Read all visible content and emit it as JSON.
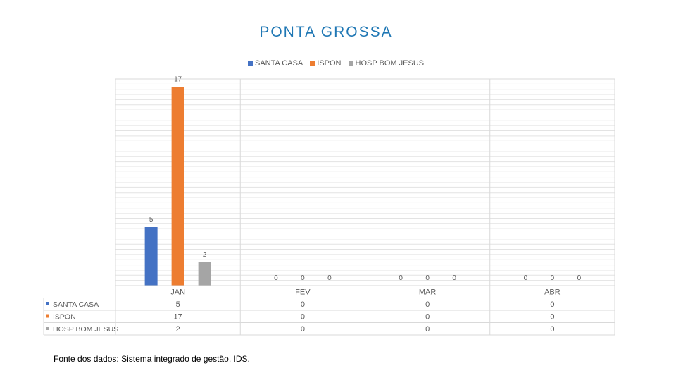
{
  "chart_data": {
    "type": "bar",
    "title": "PONTA GROSSA",
    "categories": [
      "JAN",
      "FEV",
      "MAR",
      "ABR"
    ],
    "series": [
      {
        "name": "SANTA CASA",
        "values": [
          5,
          0,
          0,
          0
        ],
        "color": "#4472c4"
      },
      {
        "name": "ISPON",
        "values": [
          17,
          0,
          0,
          0
        ],
        "color": "#ed7d31"
      },
      {
        "name": "HOSP BOM JESUS",
        "values": [
          2,
          0,
          0,
          0
        ],
        "color": "#a5a5a5"
      }
    ],
    "ylim": [
      0,
      17.7
    ],
    "grid": true,
    "legend_position": "top",
    "data_table": true
  },
  "source_note": "Fonte dos dados: Sistema integrado de gestão, IDS."
}
